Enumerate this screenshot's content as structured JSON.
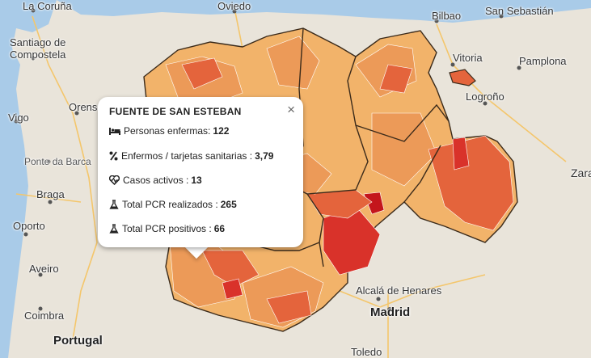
{
  "map_labels": {
    "la_coruna": "La Coruña",
    "oviedo": "Oviedo",
    "bilbao": "Bilbao",
    "san_sebastian": "San Sebastián",
    "santiago": "Santiago de\nCompostela",
    "vitoria": "Vitoria",
    "pamplona": "Pamplona",
    "vigo": "Vigo",
    "orense": "Orense",
    "logrono": "Logroño",
    "ponte_da_barca": "Ponte da Barca",
    "braga": "Braga",
    "zara": "Zara",
    "oporto": "Oporto",
    "aveiro": "Aveiro",
    "coimbra": "Coimbra",
    "portugal": "Portugal",
    "alcala": "Alcalá de Henares",
    "madrid": "Madrid",
    "toledo": "Toledo"
  },
  "popup": {
    "title": "FUENTE DE SAN ESTEBAN",
    "close": "×",
    "rows": [
      {
        "icon": "bed-icon",
        "label": "Personas enfermas:",
        "value": "122"
      },
      {
        "icon": "percent-icon",
        "label": "Enfermos / tarjetas sanitarias :",
        "value": "3,79"
      },
      {
        "icon": "heartbeat-icon",
        "label": "Casos activos :",
        "value": "13"
      },
      {
        "icon": "flask-icon",
        "label": "Total PCR realizados :",
        "value": "265"
      },
      {
        "icon": "flask-icon",
        "label": "Total PCR positivos :",
        "value": "66"
      }
    ]
  },
  "colors": {
    "low": "#f2b36a",
    "mid": "#ec9a58",
    "high": "#e4643c",
    "very_high": "#d9322a",
    "max": "#c4161c",
    "water": "#a9cbe8",
    "land": "#e9e4da"
  }
}
